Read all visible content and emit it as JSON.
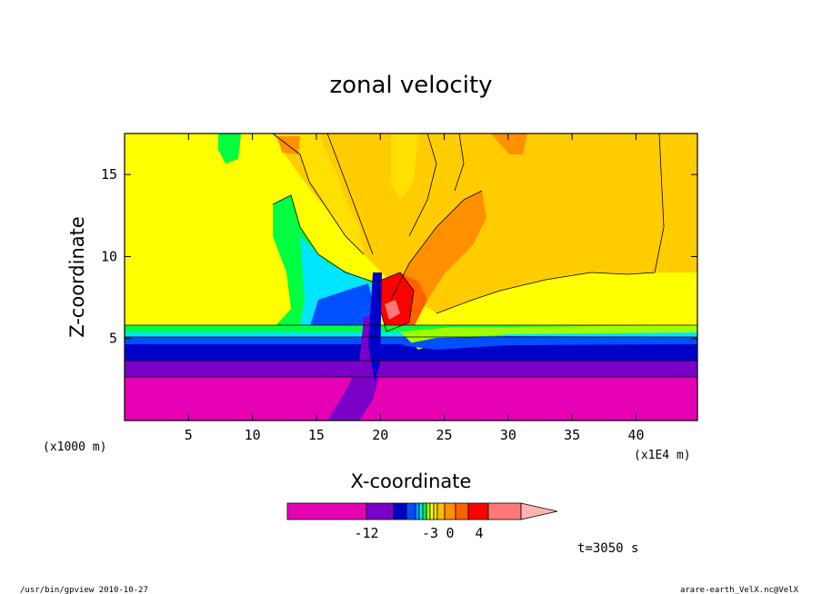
{
  "chart_data": {
    "type": "heatmap",
    "title": "zonal velocity",
    "xlabel": "X-coordinate",
    "ylabel": "Z-coordinate",
    "x_scale_note": "(x1E4 m)",
    "y_scale_note": "(x1000 m)",
    "x_ticks": [
      5,
      10,
      15,
      20,
      25,
      30,
      35,
      40
    ],
    "y_ticks": [
      5,
      10,
      15
    ],
    "xlim": [
      0,
      44.8
    ],
    "ylim": [
      0,
      17.5
    ],
    "colorbar": {
      "colors": [
        "#e600b4",
        "#7a00c8",
        "#0000c8",
        "#0050ff",
        "#00a0ff",
        "#00e6ff",
        "#00ff40",
        "#a0ff00",
        "#ffff00",
        "#ffe000",
        "#ffc000",
        "#ff9000",
        "#ff6000",
        "#ff0000",
        "#ff7878",
        "#ffb4b4"
      ],
      "tick_labels": [
        "-12",
        "-3",
        "0",
        "4"
      ]
    },
    "time_label": "t=3050 s",
    "colors": {
      "background_field": "#ffff00",
      "upper_positive": "#ffcc00",
      "lower_negative": "#e600b4"
    }
  },
  "footer": {
    "left": "/usr/bin/gpview   2010-10-27",
    "right": "arare-earth_VelX.nc@VelX"
  }
}
